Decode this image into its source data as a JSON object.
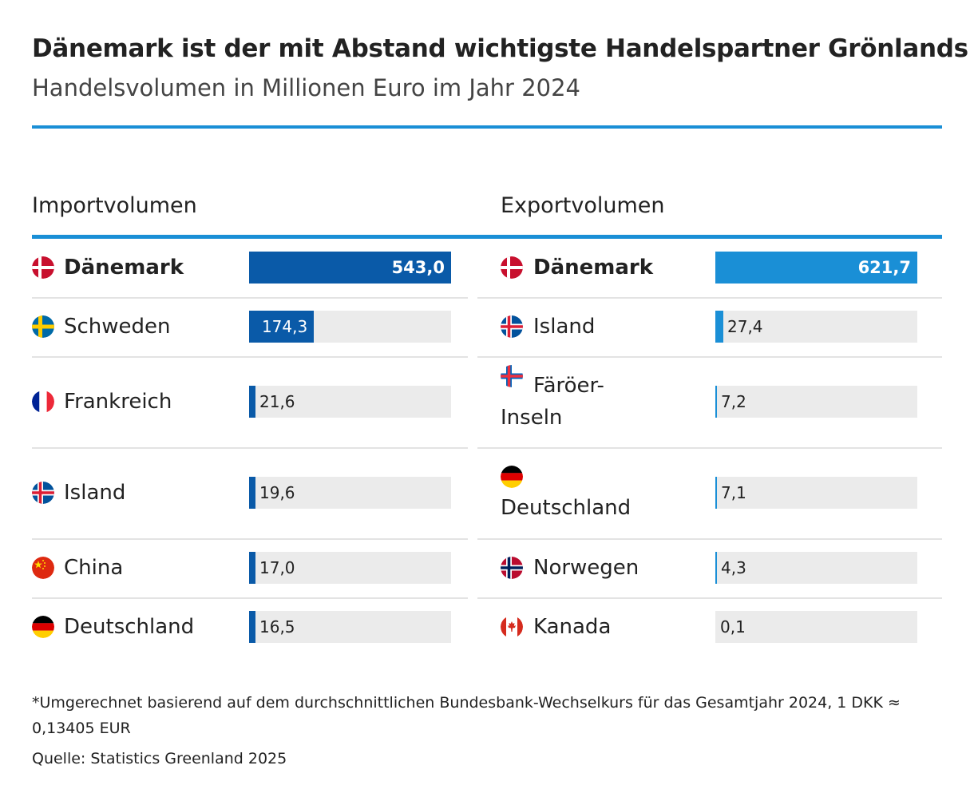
{
  "title": "Dänemark ist der mit Abstand wichtigste Handelspartner Grönlands",
  "subtitle": "Handelsvolumen in Millionen Euro im Jahr 2024",
  "colors": {
    "import_bar": "#0a5aa8",
    "export_bar": "#1a8fd6",
    "track": "#ebebeb",
    "rule": "#1a8fd6"
  },
  "chart_data": [
    {
      "type": "bar",
      "title": "Importvolumen",
      "categories": [
        "Dänemark",
        "Schweden",
        "Frankreich",
        "Island",
        "China",
        "Deutschland"
      ],
      "values": [
        543.0,
        174.3,
        21.6,
        19.6,
        17.0,
        16.5
      ],
      "value_labels": [
        "543,0",
        "174,3",
        "21,6",
        "19,6",
        "17,0",
        "16,5"
      ],
      "flags": [
        "denmark-flag-icon",
        "sweden-flag-icon",
        "france-flag-icon",
        "iceland-flag-icon",
        "china-flag-icon",
        "germany-flag-icon"
      ]
    },
    {
      "type": "bar",
      "title": "Exportvolumen",
      "categories": [
        "Dänemark",
        "Island",
        "Färöer-Inseln",
        "Deutschland",
        "Norwegen",
        "Kanada"
      ],
      "values": [
        621.7,
        27.4,
        7.2,
        7.1,
        4.3,
        0.1
      ],
      "value_labels": [
        "621,7",
        "27,4",
        "7,2",
        "7,1",
        "4,3",
        "0,1"
      ],
      "flags": [
        "denmark-flag-icon",
        "iceland-flag-icon",
        "faroe-islands-flag-icon",
        "germany-flag-icon",
        "norway-flag-icon",
        "canada-flag-icon"
      ]
    }
  ],
  "footnote": "*Umgerechnet basierend auf dem durchschnittlichen Bundesbank-Wechselkurs für das Gesamtjahr 2024, 1 DKK ≈ 0,13405 EUR",
  "source": "Quelle: Statistics Greenland 2025"
}
